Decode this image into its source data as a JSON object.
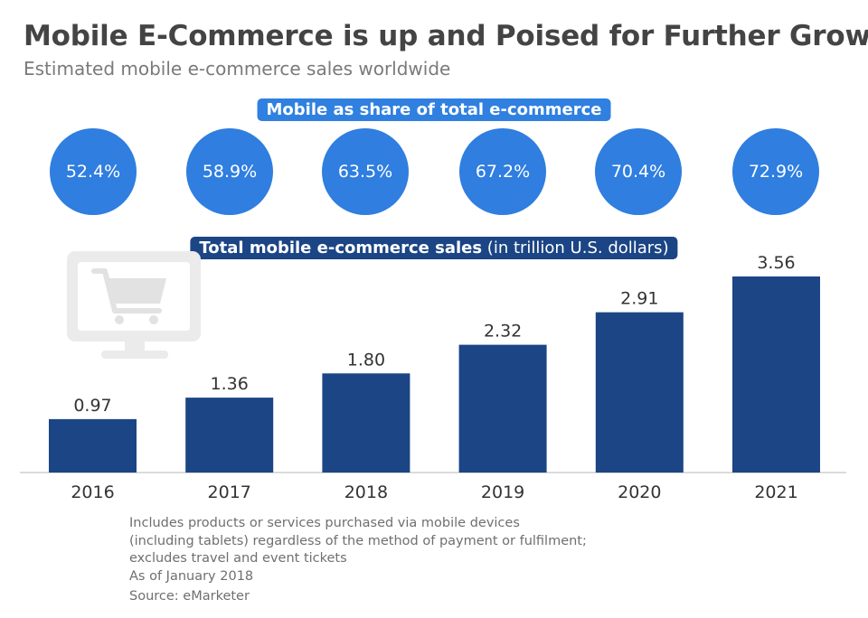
{
  "title": "Mobile E-Commerce is up and Poised for Further Growth",
  "subtitle": "Estimated mobile e-commerce sales worldwide",
  "share_label": "Mobile as share of total e-commerce",
  "share_values": [
    "52.4%",
    "58.9%",
    "63.5%",
    "67.2%",
    "70.4%",
    "72.9%"
  ],
  "sales_label_bold": "Total mobile e-commerce sales",
  "sales_label_rest": " (in trillion U.S. dollars)",
  "icons": [
    "monitor-shopping-cart-icon"
  ],
  "colors": {
    "bar": "#1b4585",
    "share_circle": "#2f7ee0",
    "share_pill": "#2f80e0",
    "sales_pill": "#1b4585"
  },
  "chart_data": {
    "type": "bar",
    "categories": [
      "2016",
      "2017",
      "2018",
      "2019",
      "2020",
      "2021"
    ],
    "values": [
      0.97,
      1.36,
      1.8,
      2.32,
      2.91,
      3.56
    ],
    "value_labels": [
      "0.97",
      "1.36",
      "1.80",
      "2.32",
      "2.91",
      "3.56"
    ],
    "ylim": [
      0,
      3.56
    ],
    "grid": false
  },
  "footnote": {
    "lines": [
      "Includes products or services purchased via mobile devices",
      "(including tablets) regardless of the method of payment or fulfilment;",
      "excludes travel and event tickets",
      "As of January 2018"
    ],
    "source": "Source: eMarketer"
  }
}
